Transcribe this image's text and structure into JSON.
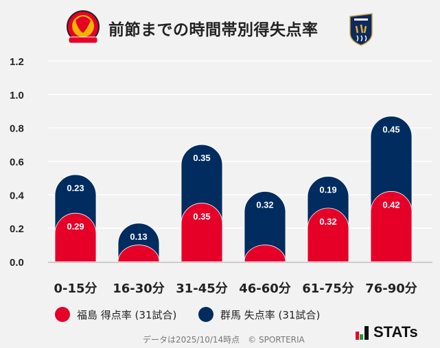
{
  "header": {
    "title": "前節までの時間帯別得失点率",
    "home_logo": "FUKUSHIMA UNITED FC",
    "away_logo": "GUNMA"
  },
  "chart_data": {
    "type": "bar",
    "stacked": true,
    "title": "前節までの時間帯別得失点率",
    "categories": [
      "0-15分",
      "16-30分",
      "31-45分",
      "46-60分",
      "61-75分",
      "76-90分"
    ],
    "ylim": [
      0,
      1.2
    ],
    "yticks": [
      "0.0",
      "0.2",
      "0.4",
      "0.6",
      "0.8",
      "1.0",
      "1.2"
    ],
    "grid": true,
    "legend_placement": "bottom",
    "series": [
      {
        "name": "福島 得点率 (31試合)",
        "color": "#e60028",
        "values": [
          0.29,
          0.1,
          0.35,
          0.1,
          0.32,
          0.42
        ],
        "labels": [
          "0.29",
          "",
          "0.35",
          "",
          "0.32",
          "0.42"
        ]
      },
      {
        "name": "群馬 失点率 (31試合)",
        "color": "#002c5f",
        "values": [
          0.23,
          0.13,
          0.35,
          0.32,
          0.19,
          0.45
        ],
        "labels": [
          "0.23",
          "0.13",
          "0.35",
          "0.32",
          "0.19",
          "0.45"
        ]
      }
    ]
  },
  "footer": {
    "note": "データは2025/10/14時点　© SPORTERIA",
    "brand": "STATs"
  }
}
